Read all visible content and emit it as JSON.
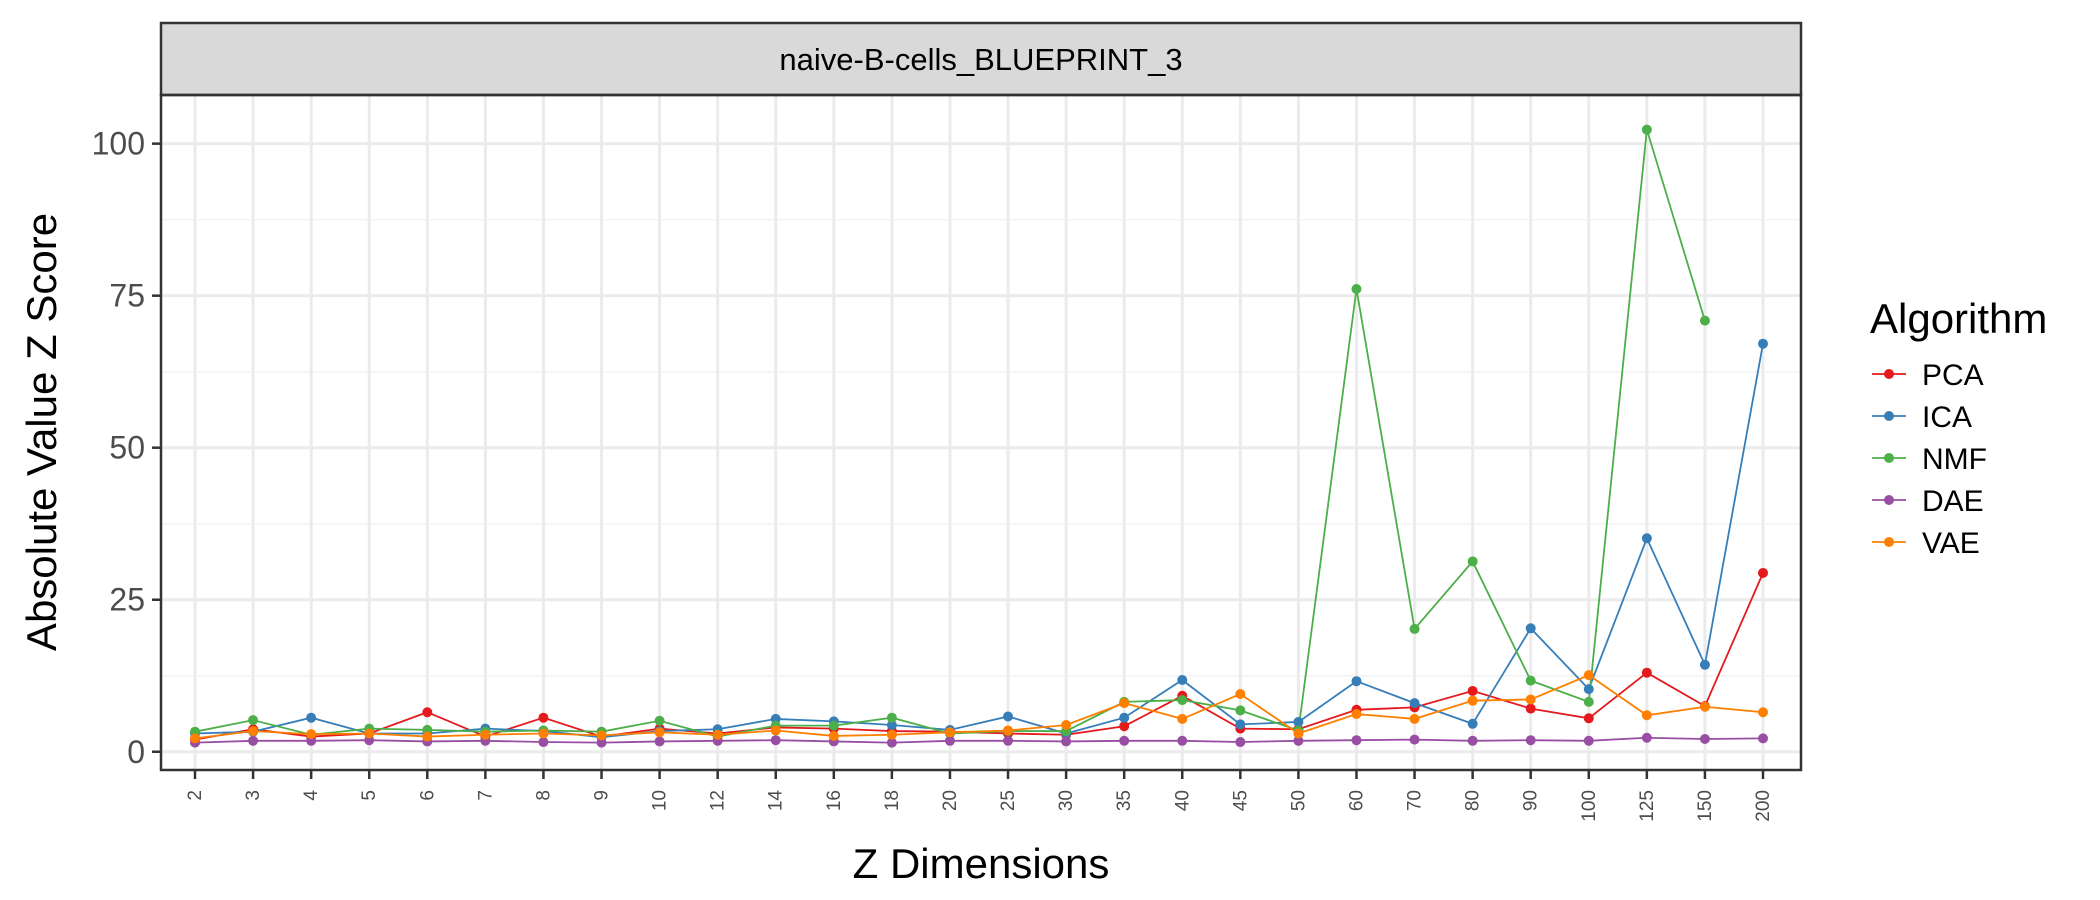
{
  "chart_data": {
    "type": "line",
    "facet_title": "naive-B-cells_BLUEPRINT_3",
    "xlabel": "Z Dimensions",
    "ylabel": "Absolute Value Z Score",
    "categories": [
      "2",
      "3",
      "4",
      "5",
      "6",
      "7",
      "8",
      "9",
      "10",
      "12",
      "14",
      "16",
      "18",
      "20",
      "25",
      "30",
      "35",
      "40",
      "45",
      "50",
      "60",
      "70",
      "80",
      "90",
      "100",
      "125",
      "150",
      "200"
    ],
    "ylim": [
      -3,
      108
    ],
    "y_ticks": [
      0,
      25,
      50,
      75,
      100
    ],
    "y_tick_labels": [
      "0",
      "25",
      "50",
      "75",
      "100"
    ],
    "grid": true,
    "legend": {
      "title": "Algorithm",
      "position": "right"
    },
    "series": [
      {
        "name": "PCA",
        "color": "#e41a1c",
        "values": [
          2.0,
          3.7,
          2.5,
          3.0,
          6.5,
          2.5,
          5.6,
          2.5,
          3.8,
          3.0,
          4.0,
          3.8,
          3.4,
          3.3,
          3.0,
          2.8,
          4.2,
          9.2,
          3.8,
          3.7,
          6.9,
          7.3,
          10.0,
          7.1,
          5.5,
          13.0,
          7.5,
          29.4
        ]
      },
      {
        "name": "ICA",
        "color": "#377eb8",
        "values": [
          3.0,
          3.3,
          5.6,
          3.0,
          3.0,
          3.8,
          3.4,
          2.4,
          3.4,
          3.7,
          5.4,
          5.0,
          4.4,
          3.6,
          5.8,
          3.0,
          5.6,
          11.8,
          4.5,
          4.9,
          11.6,
          8.0,
          4.6,
          20.3,
          10.3,
          35.1,
          14.3,
          67.1
        ]
      },
      {
        "name": "NMF",
        "color": "#4daf4a",
        "values": [
          3.3,
          5.2,
          2.8,
          3.8,
          3.6,
          3.3,
          3.5,
          3.3,
          5.1,
          2.5,
          4.3,
          4.3,
          5.6,
          3.0,
          3.4,
          3.4,
          8.2,
          8.5,
          6.8,
          3.5,
          76.1,
          20.2,
          31.3,
          11.7,
          8.2,
          102.3,
          70.9,
          null
        ]
      },
      {
        "name": "DAE",
        "color": "#984ea3",
        "values": [
          1.5,
          1.8,
          1.8,
          1.9,
          1.7,
          1.8,
          1.6,
          1.5,
          1.7,
          1.8,
          1.9,
          1.7,
          1.5,
          1.8,
          1.8,
          1.7,
          1.8,
          1.8,
          1.6,
          1.8,
          1.9,
          2.0,
          1.8,
          1.9,
          1.8,
          2.3,
          2.1,
          2.2
        ]
      },
      {
        "name": "VAE",
        "color": "#ff7f00",
        "values": [
          2.2,
          3.4,
          2.9,
          3.0,
          2.5,
          2.8,
          3.0,
          2.7,
          3.2,
          2.8,
          3.5,
          2.6,
          2.8,
          3.2,
          3.5,
          4.4,
          8.0,
          5.4,
          9.5,
          3.0,
          6.2,
          5.4,
          8.4,
          8.6,
          12.6,
          6.0,
          7.4,
          6.5
        ]
      }
    ]
  }
}
